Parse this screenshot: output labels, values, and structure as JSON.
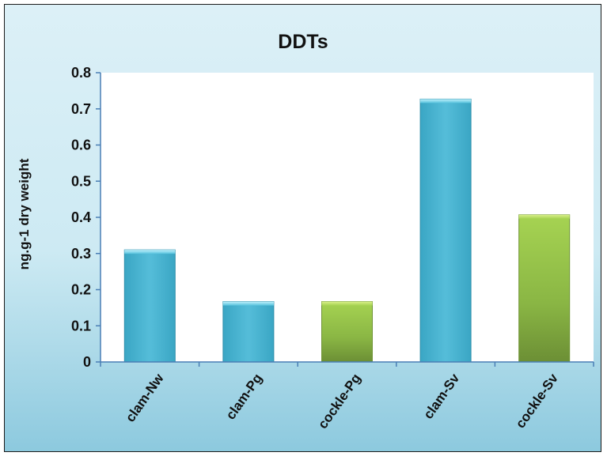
{
  "chart_data": {
    "type": "bar",
    "title": "DDTs",
    "xlabel": "",
    "ylabel": "ng.g-1 dry weight",
    "ylim": [
      0,
      0.8
    ],
    "yticks": [
      "0",
      "0.1",
      "0.2",
      "0.3",
      "0.4",
      "0.5",
      "0.6",
      "0.7",
      "0.8"
    ],
    "categories": [
      "clam-Nw",
      "clam-Pg",
      "cockle-Pg",
      "clam-Sv",
      "cockle-Sv"
    ],
    "values": [
      0.31,
      0.167,
      0.167,
      0.727,
      0.407
    ],
    "bar_colors": [
      "#4db8d4",
      "#4db8d4",
      "#9acb4a",
      "#4db8d4",
      "#9acb4a"
    ],
    "grid": false,
    "legend": "none"
  }
}
